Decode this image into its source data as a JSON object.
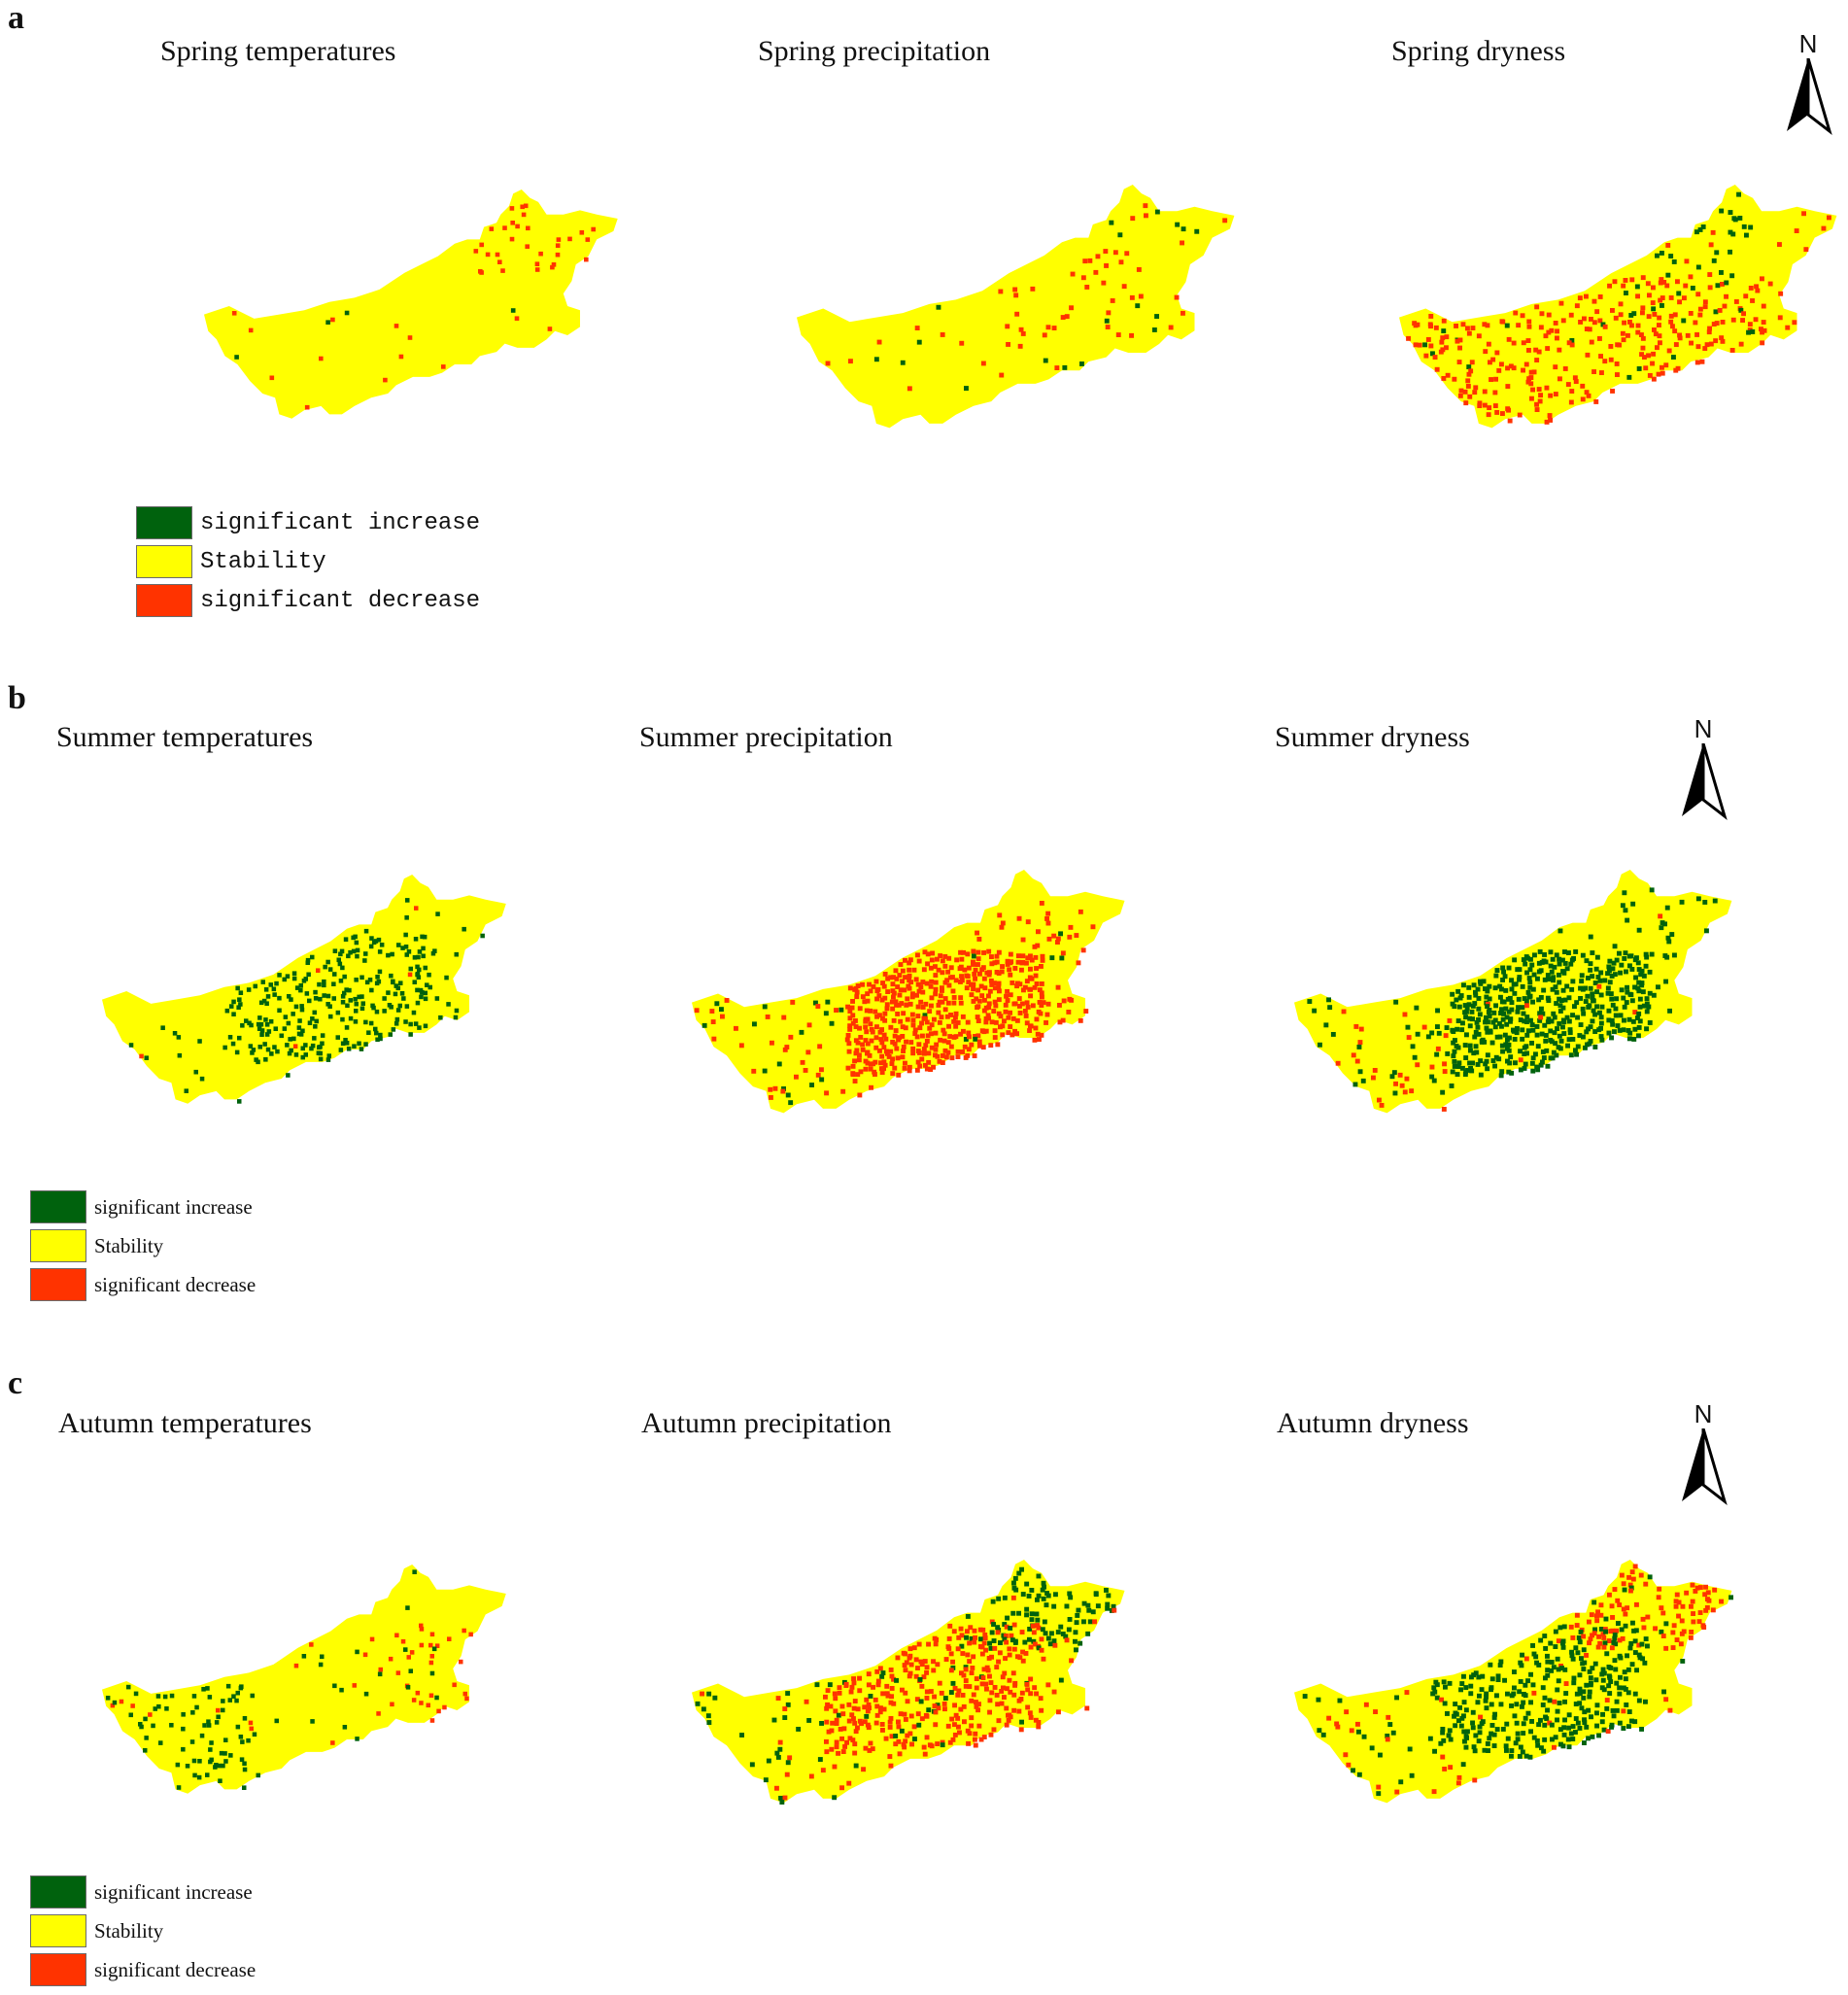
{
  "panels": [
    {
      "letter": "a",
      "maps": [
        {
          "title": "Spring temperatures",
          "green": 0.01,
          "red": 0.06,
          "redZones": "ne",
          "greenZones": "none"
        },
        {
          "title": "Spring precipitation",
          "green": 0.05,
          "red": 0.06,
          "redZones": "mid",
          "greenZones": "ne-south"
        },
        {
          "title": "Spring dryness",
          "green": 0.07,
          "red": 0.14,
          "redZones": "west-east",
          "greenZones": "north-mid"
        }
      ],
      "north_label": "N",
      "legend": {
        "style": "mono",
        "items": [
          {
            "label": "significant increase",
            "color": "#00620d"
          },
          {
            "label": "Stability",
            "color": "#ffff00"
          },
          {
            "label": "significant decrease",
            "color": "#ff3300"
          }
        ]
      }
    },
    {
      "letter": "b",
      "maps": [
        {
          "title": "Summer temperatures",
          "green": 0.2,
          "red": 0.01,
          "redZones": "none",
          "greenZones": "central"
        },
        {
          "title": "Summer precipitation",
          "green": 0.03,
          "red": 0.45,
          "redZones": "central-heavy",
          "greenZones": "west"
        },
        {
          "title": "Summer dryness",
          "green": 0.42,
          "red": 0.03,
          "redZones": "west",
          "greenZones": "central-heavy"
        }
      ],
      "north_label": "N",
      "legend": {
        "style": "serif",
        "items": [
          {
            "label": "significant increase",
            "color": "#00620d"
          },
          {
            "label": "Stability",
            "color": "#ffff00"
          },
          {
            "label": "significant decrease",
            "color": "#ff3300"
          }
        ]
      }
    },
    {
      "letter": "c",
      "maps": [
        {
          "title": "Autumn temperatures",
          "green": 0.1,
          "red": 0.06,
          "redZones": "east",
          "greenZones": "west"
        },
        {
          "title": "Autumn precipitation",
          "green": 0.2,
          "red": 0.25,
          "redZones": "central",
          "greenZones": "ne"
        },
        {
          "title": "Autumn dryness",
          "green": 0.25,
          "red": 0.2,
          "redZones": "ne",
          "greenZones": "central"
        }
      ],
      "north_label": "N",
      "legend": {
        "style": "serif",
        "items": [
          {
            "label": "significant increase",
            "color": "#00620d"
          },
          {
            "label": "Stability",
            "color": "#ffff00"
          },
          {
            "label": "significant decrease",
            "color": "#ff3300"
          }
        ]
      }
    }
  ]
}
